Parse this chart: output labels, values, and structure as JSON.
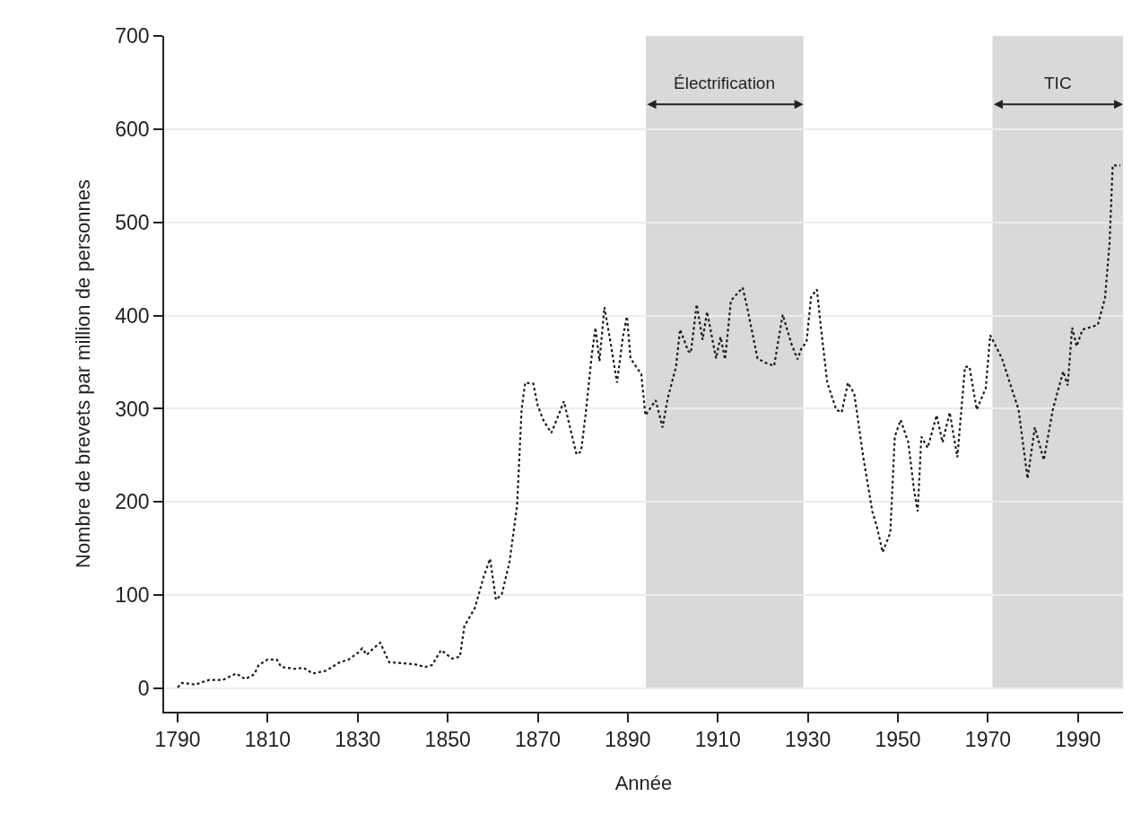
{
  "chart_data": {
    "type": "line",
    "xlabel": "Année",
    "ylabel": "Nombre de brevets par million de personnes",
    "x": [
      1790,
      1791,
      1794,
      1795,
      1797,
      1800,
      1803,
      1805,
      1807,
      1808,
      1810,
      1812,
      1813,
      1816,
      1818,
      1820,
      1823,
      1824,
      1826,
      1828,
      1830,
      1831,
      1832,
      1833.5,
      1835,
      1837,
      1840,
      1842.5,
      1845,
      1846.5,
      1848.5,
      1851,
      1852.7,
      1853.7,
      1856,
      1858,
      1859.4,
      1860.7,
      1862,
      1863.7,
      1865.4,
      1866.4,
      1867.2,
      1869,
      1870,
      1871.3,
      1873,
      1874.6,
      1875.8,
      1877.3,
      1878.6,
      1879.6,
      1880.6,
      1882,
      1882.8,
      1883.7,
      1884.8,
      1886.3,
      1887.6,
      1888.9,
      1889.8,
      1890.6,
      1893,
      1893.9,
      1896.2,
      1897.7,
      1898.9,
      1900.7,
      1901.6,
      1903.4,
      1904,
      1905.3,
      1906.6,
      1907.6,
      1909.6,
      1910.6,
      1911.6,
      1912.9,
      1915.5,
      1916.5,
      1918.8,
      1920.7,
      1922.5,
      1924.4,
      1926.3,
      1927.7,
      1928.5,
      1929.7,
      1930.7,
      1932,
      1932.9,
      1934.3,
      1936.3,
      1937.5,
      1938.9,
      1940.3,
      1942.3,
      1944.3,
      1945.3,
      1946.6,
      1948.3,
      1949.3,
      1950.6,
      1952.3,
      1953.6,
      1954.4,
      1955.2,
      1956.6,
      1958.6,
      1959.9,
      1961.5,
      1963.2,
      1964.9,
      1965.9,
      1967.5,
      1969.5,
      1970.5,
      1973.1,
      1976.8,
      1978.8,
      1980.4,
      1982.4,
      1984.4,
      1986.7,
      1987.7,
      1988.7,
      1989.7,
      1991,
      1994.4,
      1996,
      1997,
      1997.7,
      1999.4
    ],
    "series": [
      {
        "color": "#1a1a1a",
        "values": [
          1,
          6,
          4,
          6,
          9,
          9,
          16,
          10,
          15,
          25,
          31,
          31,
          23,
          21,
          22,
          16,
          19,
          22,
          28,
          31,
          38,
          43,
          36,
          43,
          49,
          28,
          27,
          26,
          23,
          25,
          41,
          32,
          34,
          67,
          86,
          120,
          139,
          95,
          101,
          135,
          196,
          299,
          328,
          327,
          303,
          287,
          274,
          293,
          308,
          277,
          251,
          254,
          293,
          358,
          387,
          351,
          409,
          367,
          328,
          377,
          399,
          354,
          337,
          293,
          309,
          280,
          312,
          345,
          385,
          362,
          360,
          412,
          374,
          404,
          354,
          377,
          353,
          416,
          430,
          409,
          354,
          349,
          346,
          401,
          370,
          353,
          364,
          372,
          420,
          428,
          387,
          328,
          299,
          296,
          328,
          316,
          248,
          190,
          174,
          146,
          167,
          270,
          288,
          264,
          212,
          190,
          270,
          258,
          293,
          264,
          296,
          248,
          345,
          345,
          299,
          322,
          379,
          354,
          299,
          225,
          280,
          245,
          299,
          340,
          325,
          387,
          367,
          385,
          390,
          419,
          477,
          561,
          561
        ]
      }
    ],
    "xlim": [
      1787,
      2000
    ],
    "xticks": [
      1790,
      1810,
      1830,
      1850,
      1870,
      1890,
      1910,
      1930,
      1950,
      1970,
      1990
    ],
    "ylim": [
      -25,
      700
    ],
    "yticks": [
      0,
      100,
      200,
      300,
      400,
      500,
      600,
      700
    ],
    "grid": "y",
    "marker": "none",
    "line_style": "dotted",
    "bands": [
      {
        "axis": "x",
        "from": 1894,
        "to": 1929,
        "label": "Électrification",
        "color": "#d9d9d9"
      },
      {
        "axis": "x",
        "from": 1971,
        "to": 2000,
        "label": "TIC",
        "color": "#d9d9d9"
      }
    ]
  }
}
